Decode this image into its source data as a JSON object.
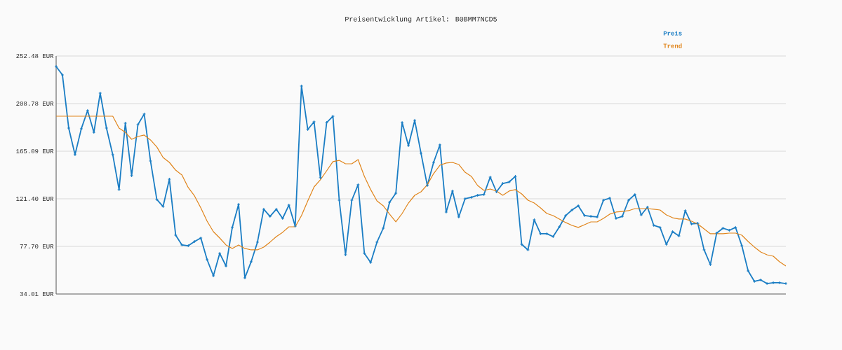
{
  "chart_data": {
    "type": "line",
    "title": "Preisentwicklung Artikel: B0BMM7NCD5",
    "categories": [
      null,
      null,
      null,
      null,
      null,
      null,
      null,
      null,
      null,
      null,
      null,
      null,
      null,
      null,
      null,
      null,
      null,
      null,
      null,
      null,
      null,
      null,
      null,
      null,
      null,
      null,
      null,
      null,
      null,
      null,
      null,
      null,
      null,
      null,
      null,
      null,
      null,
      null,
      null,
      null,
      null,
      null,
      null,
      null,
      null,
      null,
      null,
      null,
      null,
      null,
      null,
      null,
      null,
      null,
      null,
      null,
      null,
      null,
      null,
      null,
      null,
      null,
      null,
      null,
      null,
      null,
      null,
      null,
      null,
      null,
      null,
      null,
      null,
      null,
      null,
      null,
      null,
      null,
      null,
      null,
      null,
      null,
      null,
      null,
      null,
      null,
      null,
      null,
      null,
      null,
      null,
      null,
      null,
      null,
      null,
      null,
      null,
      null,
      null,
      null,
      null,
      null,
      null,
      null,
      null,
      null,
      null,
      null,
      null,
      null,
      null,
      null,
      null,
      null,
      null,
      null,
      null
    ],
    "series": [
      {
        "name": "Preis",
        "color": "#1a7dc4",
        "marker": "cross",
        "values": [
          242.8,
          235.1,
          186.3,
          161.9,
          185.7,
          202.4,
          182.4,
          218.4,
          186.3,
          161.9,
          129.8,
          190.8,
          142.6,
          189.5,
          199.2,
          156.1,
          120.8,
          114.3,
          139.4,
          88.0,
          79.0,
          78.3,
          82.2,
          85.4,
          65.5,
          50.7,
          71.3,
          59.7,
          95.1,
          116.3,
          48.8,
          63.6,
          81.6,
          111.8,
          105.3,
          111.8,
          103.4,
          115.6,
          96.3,
          224.9,
          185.0,
          192.1,
          140.7,
          191.4,
          197.2,
          120.1,
          70.0,
          120.1,
          134.3,
          71.3,
          62.9,
          81.6,
          94.4,
          118.2,
          126.5,
          191.4,
          170.2,
          193.4,
          163.2,
          133.6,
          154.8,
          170.9,
          109.2,
          128.5,
          104.7,
          121.4,
          122.7,
          124.6,
          125.3,
          141.3,
          127.8,
          135.5,
          136.8,
          142.0,
          79.6,
          74.5,
          102.1,
          89.3,
          89.3,
          86.7,
          95.7,
          106.0,
          111.1,
          115.0,
          106.0,
          105.3,
          104.7,
          120.1,
          122.0,
          103.4,
          105.3,
          120.1,
          125.3,
          106.6,
          113.7,
          97.0,
          95.1,
          79.6,
          91.2,
          87.3,
          110.5,
          98.3,
          98.9,
          74.5,
          61.0,
          89.9,
          94.4,
          92.5,
          95.1,
          78.3,
          55.2,
          45.6,
          46.9,
          43.6,
          44.3,
          44.3,
          43.6
        ]
      },
      {
        "name": "Trend",
        "color": "#e0841a",
        "values": [
          197.2,
          197.2,
          197.2,
          197.2,
          197.2,
          197.2,
          197.2,
          197.2,
          197.2,
          197.2,
          186.3,
          182.4,
          176.0,
          178.6,
          179.9,
          175.4,
          169.0,
          159.3,
          154.8,
          147.7,
          143.2,
          131.7,
          124.0,
          113.0,
          100.8,
          91.2,
          85.4,
          79.0,
          75.8,
          79.0,
          75.8,
          74.5,
          74.5,
          77.1,
          81.6,
          86.7,
          90.6,
          95.7,
          95.7,
          106.0,
          119.5,
          132.3,
          138.8,
          147.1,
          155.5,
          156.7,
          153.5,
          153.5,
          157.4,
          142.0,
          129.8,
          119.5,
          115.0,
          107.3,
          100.2,
          107.9,
          117.5,
          124.6,
          127.8,
          134.3,
          144.5,
          152.2,
          154.2,
          154.8,
          152.9,
          145.8,
          142.0,
          133.6,
          129.1,
          130.4,
          128.5,
          124.6,
          128.5,
          129.8,
          125.9,
          120.1,
          117.5,
          113.0,
          107.9,
          106.0,
          102.8,
          99.6,
          97.0,
          95.1,
          97.6,
          100.2,
          100.2,
          103.4,
          107.3,
          109.2,
          109.8,
          110.5,
          112.4,
          112.4,
          112.4,
          111.8,
          111.1,
          106.6,
          104.0,
          102.8,
          102.8,
          100.8,
          98.3,
          93.8,
          89.3,
          89.3,
          89.3,
          89.9,
          89.9,
          88.0,
          82.2,
          77.1,
          72.6,
          70.0,
          68.7,
          63.6,
          59.7
        ]
      }
    ],
    "ylim": [
      34.01,
      252.48
    ],
    "yticks": [
      {
        "value": 34.01,
        "label": "34.01 EUR"
      },
      {
        "value": 77.7,
        "label": "77.70 EUR"
      },
      {
        "value": 121.4,
        "label": "121.40 EUR"
      },
      {
        "value": 165.09,
        "label": "165.09 EUR"
      },
      {
        "value": 208.78,
        "label": "208.78 EUR"
      },
      {
        "value": 252.48,
        "label": "252.48 EUR"
      }
    ],
    "grid": "y",
    "legend": "top right",
    "tick_labels": "y"
  }
}
